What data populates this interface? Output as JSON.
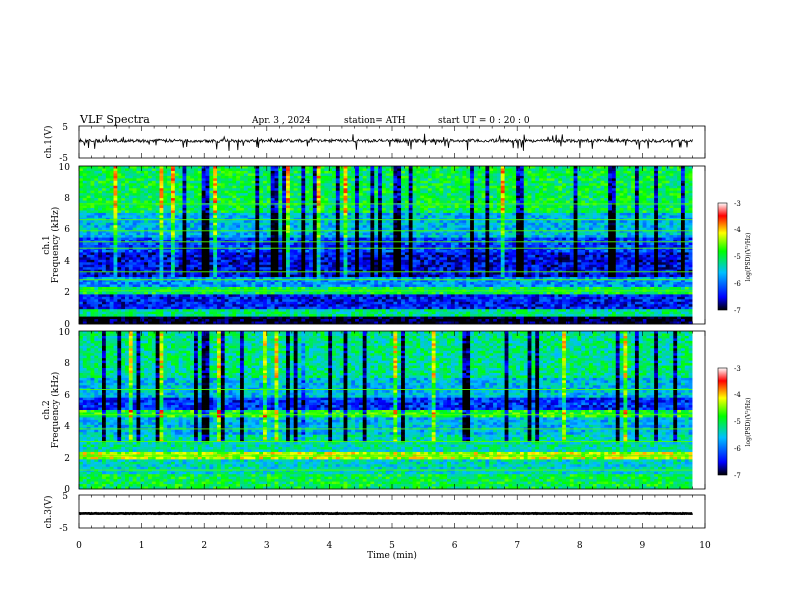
{
  "header": {
    "title": "VLF Spectra",
    "date": "Apr. 3 , 2024",
    "station": "station= ATH",
    "start_ut": "start UT =  0 : 20 : 0"
  },
  "chart_data": [
    {
      "type": "line",
      "name": "ch1-waveform",
      "ylabel": "ch.1(V)",
      "yticks": [
        "5",
        "-5"
      ],
      "ylim": [
        -5,
        5
      ],
      "x_range_min": [
        0,
        9.8
      ],
      "baseline_v": 0.4,
      "amplitude_v": 1.0,
      "color": "#000000"
    },
    {
      "type": "heatmap",
      "name": "ch1-spectrogram",
      "ylabel_line1": "ch.1",
      "ylabel_line2": "Frequency (kHz)",
      "yticks": [
        "10",
        "8",
        "6",
        "4",
        "2",
        "0"
      ],
      "ylim_khz": [
        0,
        10
      ],
      "x_range_min": [
        0,
        9.8
      ],
      "colorbar": {
        "label": "log(PSD)(V²/Hz)",
        "ticks": [
          "-3",
          "-4",
          "-5",
          "-6",
          "-7"
        ],
        "range": [
          -7,
          -3
        ]
      },
      "bands": [
        {
          "f_khz": [
            0.0,
            0.4
          ],
          "level": -7.0
        },
        {
          "f_khz": [
            0.4,
            0.9
          ],
          "level": -5.2
        },
        {
          "f_khz": [
            0.9,
            1.9
          ],
          "level": -6.4
        },
        {
          "f_khz": [
            1.9,
            2.4
          ],
          "level": -5.0
        },
        {
          "f_khz": [
            2.4,
            3.0
          ],
          "level": -5.8
        },
        {
          "f_khz": [
            3.0,
            4.5
          ],
          "level": -6.5
        },
        {
          "f_khz": [
            4.5,
            5.5
          ],
          "level": -6.2
        },
        {
          "f_khz": [
            5.5,
            7.0
          ],
          "level": -5.6
        },
        {
          "f_khz": [
            7.0,
            10.0
          ],
          "level": -5.0
        }
      ],
      "lines_khz": [
        2.1,
        2.8,
        3.3,
        4.8,
        5.2,
        5.9,
        6.6,
        7.6
      ]
    },
    {
      "type": "heatmap",
      "name": "ch2-spectrogram",
      "ylabel_line1": "ch.2",
      "ylabel_line2": "Frequency (kHz)",
      "yticks": [
        "10",
        "8",
        "6",
        "4",
        "2",
        "0"
      ],
      "ylim_khz": [
        0,
        10
      ],
      "x_range_min": [
        0,
        9.8
      ],
      "colorbar": {
        "label": "log(PSD)(V²/Hz)",
        "ticks": [
          "-3",
          "-4",
          "-5",
          "-6",
          "-7"
        ],
        "range": [
          -7,
          -3
        ]
      },
      "bands": [
        {
          "f_khz": [
            0.0,
            1.0
          ],
          "level": -5.0
        },
        {
          "f_khz": [
            1.0,
            1.8
          ],
          "level": -5.4
        },
        {
          "f_khz": [
            1.8,
            2.3
          ],
          "level": -4.3
        },
        {
          "f_khz": [
            2.3,
            3.5
          ],
          "level": -5.3
        },
        {
          "f_khz": [
            3.5,
            4.5
          ],
          "level": -5.6
        },
        {
          "f_khz": [
            4.5,
            5.0
          ],
          "level": -4.8
        },
        {
          "f_khz": [
            5.0,
            5.8
          ],
          "level": -6.3
        },
        {
          "f_khz": [
            5.8,
            7.0
          ],
          "level": -5.6
        },
        {
          "f_khz": [
            7.0,
            10.0
          ],
          "level": -5.2
        }
      ],
      "lines_khz": [
        1.2,
        2.1,
        3.0,
        3.8,
        4.7,
        6.3
      ]
    },
    {
      "type": "line",
      "name": "ch3-waveform",
      "ylabel": "ch.3(V)",
      "yticks": [
        "5",
        "-5"
      ],
      "ylim": [
        -5,
        5
      ],
      "x_range_min": [
        0,
        9.8
      ],
      "baseline_v": -0.6,
      "amplitude_v": 0.15,
      "color": "#000000"
    }
  ],
  "xaxis": {
    "label": "Time (min)",
    "ticks": [
      "0",
      "1",
      "2",
      "3",
      "4",
      "5",
      "6",
      "7",
      "8",
      "9",
      "10"
    ],
    "range": [
      0,
      10
    ]
  },
  "colors": {
    "colormap": [
      "#000000",
      "#0000ff",
      "#00c0ff",
      "#00ff00",
      "#ffff00",
      "#ff0000",
      "#ffffff"
    ]
  }
}
